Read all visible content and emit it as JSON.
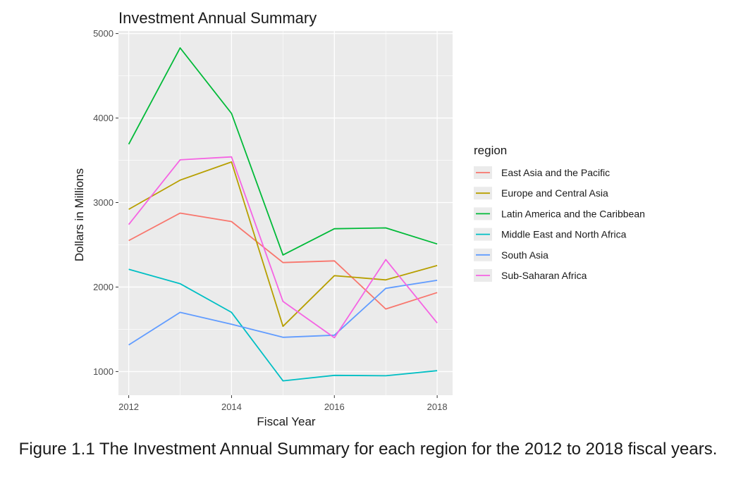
{
  "caption": "Figure 1.1 The Investment Annual Summary for each region for the 2012 to 2018 fiscal years.",
  "chart_data": {
    "type": "line",
    "title": "Investment Annual Summary",
    "xlabel": "Fiscal Year",
    "ylabel": "Dollars in Millions",
    "x": [
      2012,
      2013,
      2014,
      2015,
      2016,
      2017,
      2018
    ],
    "xlim": [
      2011.8,
      2018.3
    ],
    "ylim": [
      720,
      5030
    ],
    "xticks": [
      2012,
      2014,
      2016,
      2018
    ],
    "yticks": [
      1000,
      2000,
      3000,
      4000,
      5000
    ],
    "grid": true,
    "background": "#ebebeb",
    "legend_title": "region",
    "legend_position": "right",
    "series": [
      {
        "name": "East Asia and the Pacific",
        "color": "#F8766D",
        "values": [
          2550,
          2875,
          2775,
          2290,
          2310,
          1740,
          1935
        ]
      },
      {
        "name": "Europe and Central Asia",
        "color": "#B79F00",
        "values": [
          2920,
          3265,
          3480,
          1535,
          2135,
          2085,
          2255
        ]
      },
      {
        "name": "Latin America and the Caribbean",
        "color": "#00BA38",
        "values": [
          3690,
          4830,
          4055,
          2380,
          2690,
          2700,
          2510
        ]
      },
      {
        "name": "Middle East and North Africa",
        "color": "#00BFC4",
        "values": [
          2210,
          2040,
          1700,
          890,
          955,
          950,
          1010
        ]
      },
      {
        "name": "South Asia",
        "color": "#619CFF",
        "values": [
          1315,
          1700,
          1560,
          1405,
          1430,
          1985,
          2080
        ]
      },
      {
        "name": "Sub-Saharan Africa",
        "color": "#F564E3",
        "values": [
          2740,
          3505,
          3540,
          1830,
          1400,
          2325,
          1575
        ]
      }
    ]
  }
}
